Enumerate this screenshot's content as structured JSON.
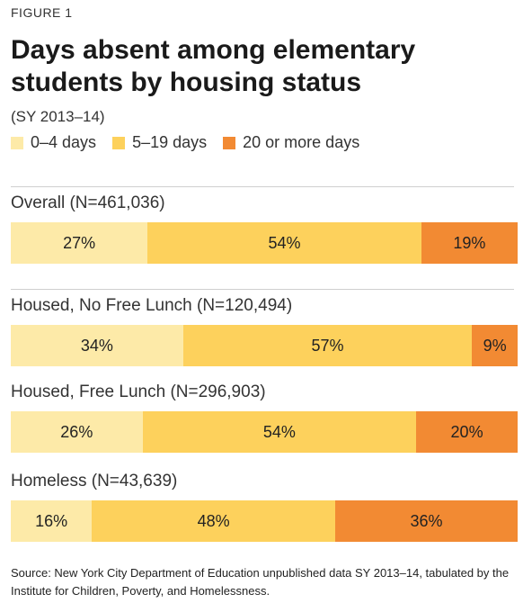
{
  "figure_label": "FIGURE 1",
  "title": "Days absent among elementary students by housing status",
  "subtitle": "(SY 2013–14)",
  "legend": [
    {
      "label": "0–4 days",
      "color": "#FDEAA8"
    },
    {
      "label": "5–19 days",
      "color": "#FDD15C"
    },
    {
      "label": "20 or more days",
      "color": "#F28A33"
    }
  ],
  "source": "Source: New York City Department of Education unpublished data SY 2013–14, tabulated by the Institute for Children, Poverty, and Homelessness.",
  "chart_data": {
    "type": "bar",
    "stacked": true,
    "orientation": "horizontal",
    "title": "Days absent among elementary students by housing status",
    "subtitle": "(SY 2013–14)",
    "legend_position": "top-left",
    "categories": [
      "Overall (N=461,036)",
      "Housed, No Free Lunch (N=120,494)",
      "Housed, Free Lunch (N=296,903)",
      "Homeless (N=43,639)"
    ],
    "series": [
      {
        "name": "0–4 days",
        "color": "#FDEAA8",
        "values": [
          27,
          34,
          26,
          16
        ],
        "labels": [
          "27%",
          "34%",
          "26%",
          "16%"
        ]
      },
      {
        "name": "5–19 days",
        "color": "#FDD15C",
        "values": [
          54,
          57,
          54,
          48
        ],
        "labels": [
          "54%",
          "57%",
          "54%",
          "48%"
        ]
      },
      {
        "name": "20 or more days",
        "color": "#F28A33",
        "values": [
          19,
          9,
          20,
          36
        ],
        "labels": [
          "19%",
          "9%",
          "20%",
          "36%"
        ]
      }
    ]
  }
}
